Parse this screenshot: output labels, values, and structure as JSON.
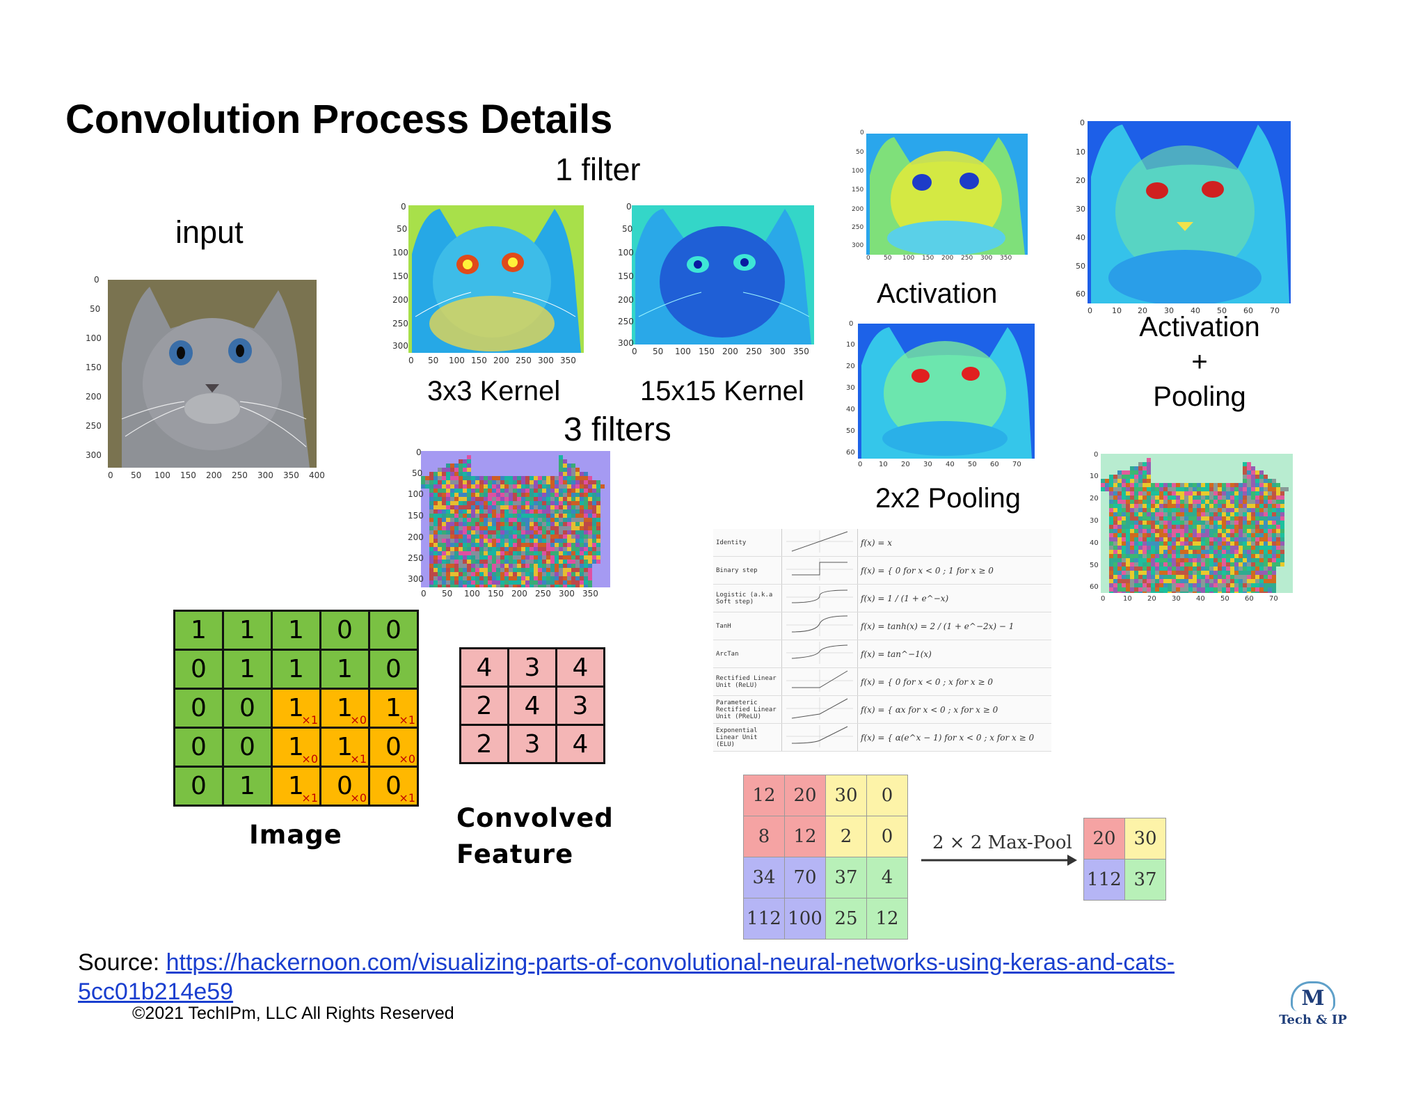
{
  "title": "Convolution Process Details",
  "labels": {
    "one_filter": "1 filter",
    "input": "input",
    "kernel3": "3x3 Kernel",
    "kernel15": "15x15 Kernel",
    "three_filters": "3 filters",
    "activation": "Activation",
    "activation_pooling_line1": "Activation",
    "activation_pooling_line2": "+",
    "activation_pooling_line3": "Pooling",
    "pooling": "2x2 Pooling",
    "image_caption": "Image",
    "convolved_line1": "Convolved",
    "convolved_line2": "Feature",
    "maxpool_label": "2 × 2 Max-Pool"
  },
  "image_grid": [
    [
      {
        "v": "1"
      },
      {
        "v": "1"
      },
      {
        "v": "1"
      },
      {
        "v": "0"
      },
      {
        "v": "0"
      }
    ],
    [
      {
        "v": "0"
      },
      {
        "v": "1"
      },
      {
        "v": "1"
      },
      {
        "v": "1"
      },
      {
        "v": "0"
      }
    ],
    [
      {
        "v": "0"
      },
      {
        "v": "0"
      },
      {
        "v": "1",
        "k": "×1"
      },
      {
        "v": "1",
        "k": "×0"
      },
      {
        "v": "1",
        "k": "×1"
      }
    ],
    [
      {
        "v": "0"
      },
      {
        "v": "0"
      },
      {
        "v": "1",
        "k": "×0"
      },
      {
        "v": "1",
        "k": "×1"
      },
      {
        "v": "0",
        "k": "×0"
      }
    ],
    [
      {
        "v": "0"
      },
      {
        "v": "1"
      },
      {
        "v": "1",
        "k": "×1"
      },
      {
        "v": "0",
        "k": "×0"
      },
      {
        "v": "0",
        "k": "×1"
      }
    ]
  ],
  "convolved_grid": [
    [
      "4",
      "3",
      "4"
    ],
    [
      "2",
      "4",
      "3"
    ],
    [
      "2",
      "3",
      "4"
    ]
  ],
  "maxpool_input": [
    [
      "12",
      "20",
      "30",
      "0"
    ],
    [
      "8",
      "12",
      "2",
      "0"
    ],
    [
      "34",
      "70",
      "37",
      "4"
    ],
    [
      "112",
      "100",
      "25",
      "12"
    ]
  ],
  "maxpool_output": [
    [
      "20",
      "30"
    ],
    [
      "112",
      "37"
    ]
  ],
  "activation_functions": [
    {
      "name": "Identity",
      "formula": "f(x) = x"
    },
    {
      "name": "Binary step",
      "formula": "f(x) = { 0 for x < 0 ; 1 for x ≥ 0"
    },
    {
      "name": "Logistic (a.k.a Soft step)",
      "formula": "f(x) = 1 / (1 + e^−x)"
    },
    {
      "name": "TanH",
      "formula": "f(x) = tanh(x) = 2 / (1 + e^−2x) − 1"
    },
    {
      "name": "ArcTan",
      "formula": "f(x) = tan^−1(x)"
    },
    {
      "name": "Rectified Linear Unit (ReLU)",
      "formula": "f(x) = { 0 for x < 0 ; x for x ≥ 0"
    },
    {
      "name": "Parameteric Rectified Linear Unit (PReLU)",
      "formula": "f(x) = { αx for x < 0 ; x for x ≥ 0"
    },
    {
      "name": "Exponential Linear Unit (ELU)",
      "formula": "f(x) = { α(e^x − 1) for x < 0 ; x for x ≥ 0"
    }
  ],
  "plots": {
    "input": {
      "xticks": [
        "0",
        "50",
        "100",
        "150",
        "200",
        "250",
        "300",
        "350",
        "400"
      ],
      "yticks": [
        "0",
        "50",
        "100",
        "150",
        "200",
        "250",
        "300"
      ]
    },
    "k3": {
      "xticks": [
        "0",
        "50",
        "100",
        "150",
        "200",
        "250",
        "300",
        "350"
      ],
      "yticks": [
        "0",
        "50",
        "100",
        "150",
        "200",
        "250",
        "300"
      ]
    },
    "k15": {
      "xticks": [
        "0",
        "50",
        "100",
        "150",
        "200",
        "250",
        "300",
        "350"
      ],
      "yticks": [
        "0",
        "50",
        "100",
        "150",
        "200",
        "250",
        "300"
      ]
    },
    "filters3": {
      "xticks": [
        "0",
        "50",
        "100",
        "150",
        "200",
        "250",
        "300",
        "350"
      ],
      "yticks": [
        "0",
        "50",
        "100",
        "150",
        "200",
        "250",
        "300"
      ]
    },
    "activation": {
      "xticks": [
        "0",
        "50",
        "100",
        "150",
        "200",
        "250",
        "300",
        "350"
      ],
      "yticks": [
        "0",
        "50",
        "100",
        "150",
        "200",
        "250",
        "300"
      ]
    },
    "pool": {
      "xticks": [
        "0",
        "10",
        "20",
        "30",
        "40",
        "50",
        "60",
        "70"
      ],
      "yticks": [
        "0",
        "10",
        "20",
        "30",
        "40",
        "50",
        "60"
      ]
    },
    "actpool": {
      "xticks": [
        "0",
        "10",
        "20",
        "30",
        "40",
        "50",
        "60",
        "70"
      ],
      "yticks": [
        "0",
        "10",
        "20",
        "30",
        "40",
        "50",
        "60"
      ]
    },
    "noise_pool": {
      "xticks": [
        "0",
        "10",
        "20",
        "30",
        "40",
        "50",
        "60",
        "70"
      ],
      "yticks": [
        "0",
        "10",
        "20",
        "30",
        "40",
        "50",
        "60"
      ]
    }
  },
  "source_prefix": "Source: ",
  "source_url_line1": "https://hackernoon.com/visualizing-parts-of-convolutional-neural-networks-using-keras-and-cats-",
  "source_url_line2": "5cc01b214e59",
  "copyright": "©2021 TechIPm, LLC All Rights Reserved",
  "logo_letter": "M",
  "logo_text": "Tech & IP",
  "colors": {
    "green": "#7ac143",
    "orange": "#ffb800",
    "pink": "#f4b6b6",
    "mp_red": "#f5a3a3",
    "mp_yellow": "#fdf3a8",
    "mp_blue": "#b5b5f5",
    "mp_green": "#b8f0b8",
    "link": "#1a3fcf"
  }
}
